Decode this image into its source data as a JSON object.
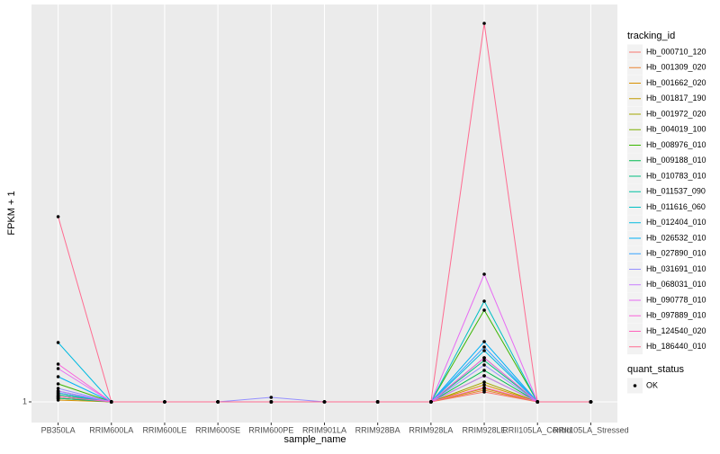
{
  "chart_data": {
    "type": "line",
    "x_label": "sample_name",
    "y_label": "FPKM + 1",
    "categories": [
      "PB350LA",
      "RRIM600LA",
      "RRIM600LE",
      "RRIM600SE",
      "RRIM600PE",
      "RRIM901LA",
      "RRIM928BA",
      "RRIM928LA",
      "RRIM928LE",
      "RRII105LA_Control",
      "RRII105LA_Stressed"
    ],
    "ylim": [
      -0.15,
      23.1
    ],
    "yticks": [
      1
    ],
    "grid": true,
    "legend_title": "tracking_id",
    "point_legend_title": "quant_status",
    "point_legend_label": "OK",
    "point_color": "#000000",
    "series": [
      {
        "name": "Hb_000710_120",
        "color": "#F8766D",
        "values": [
          1.2,
          1,
          1,
          1,
          1,
          1,
          1,
          1,
          1.55,
          1,
          1
        ]
      },
      {
        "name": "Hb_001309_020",
        "color": "#EA8331",
        "values": [
          1.3,
          1,
          1,
          1,
          1,
          1,
          1,
          1,
          1.65,
          1,
          1
        ]
      },
      {
        "name": "Hb_001662_020",
        "color": "#D89000",
        "values": [
          1.1,
          1,
          1,
          1,
          1,
          1,
          1,
          1,
          1.95,
          1,
          1
        ]
      },
      {
        "name": "Hb_001817_190",
        "color": "#C09B00",
        "values": [
          1.4,
          1,
          1,
          1,
          1,
          1,
          1,
          1,
          1.75,
          1,
          1
        ]
      },
      {
        "name": "Hb_001972_020",
        "color": "#A3A500",
        "values": [
          1.2,
          1,
          1,
          1,
          1,
          1,
          1,
          1,
          2.1,
          1,
          1
        ]
      },
      {
        "name": "Hb_004019_100",
        "color": "#7CAE00",
        "values": [
          1.5,
          1,
          1,
          1,
          1,
          1,
          1,
          1,
          2.45,
          1,
          1
        ]
      },
      {
        "name": "Hb_008976_010",
        "color": "#39B600",
        "values": [
          2.0,
          1,
          1,
          1,
          1,
          1,
          1,
          1,
          6.1,
          1,
          1
        ]
      },
      {
        "name": "Hb_009188_010",
        "color": "#00BB4E",
        "values": [
          1.3,
          1,
          1,
          1,
          1,
          1,
          1,
          1,
          2.75,
          1,
          1
        ]
      },
      {
        "name": "Hb_010783_010",
        "color": "#00BF7D",
        "values": [
          1.2,
          1,
          1,
          1,
          1,
          1,
          1,
          1,
          3.3,
          1,
          1
        ]
      },
      {
        "name": "Hb_011537_090",
        "color": "#00C1A3",
        "values": [
          1.4,
          1,
          1,
          1,
          1,
          1,
          1,
          1,
          3.45,
          1,
          1
        ]
      },
      {
        "name": "Hb_011616_060",
        "color": "#00BFC4",
        "values": [
          1.6,
          1,
          1,
          1,
          1,
          1,
          1,
          1,
          6.6,
          1,
          1
        ]
      },
      {
        "name": "Hb_012404_010",
        "color": "#00BAE0",
        "values": [
          4.3,
          1,
          1,
          1,
          1,
          1,
          1,
          1,
          3.85,
          1,
          1
        ]
      },
      {
        "name": "Hb_026532_010",
        "color": "#00B0F6",
        "values": [
          2.4,
          1,
          1,
          1,
          1,
          1,
          1,
          1,
          4.35,
          1,
          1
        ]
      },
      {
        "name": "Hb_027890_010",
        "color": "#35A2FF",
        "values": [
          1.5,
          1,
          1,
          1,
          1,
          1,
          1,
          1,
          4.05,
          1,
          1
        ]
      },
      {
        "name": "Hb_031691_010",
        "color": "#9590FF",
        "values": [
          1.75,
          1,
          1,
          1,
          1.25,
          1,
          1,
          1,
          3.05,
          1,
          1
        ]
      },
      {
        "name": "Hb_068031_010",
        "color": "#C77CFF",
        "values": [
          1.6,
          1,
          1,
          1,
          1,
          1,
          1,
          1,
          2.45,
          1,
          1
        ]
      },
      {
        "name": "Hb_090778_010",
        "color": "#E76BF3",
        "values": [
          2.85,
          1,
          1,
          1,
          1,
          1,
          1,
          1,
          8.1,
          1,
          1
        ]
      },
      {
        "name": "Hb_097889_010",
        "color": "#FA62DB",
        "values": [
          3.1,
          1,
          1,
          1,
          1,
          1,
          1,
          1,
          3.45,
          1,
          1
        ]
      },
      {
        "name": "Hb_124540_020",
        "color": "#FF62BC",
        "values": [
          1.3,
          1,
          1,
          1,
          1,
          1,
          1,
          1,
          1.8,
          1,
          1
        ]
      },
      {
        "name": "Hb_186440_010",
        "color": "#FF6C91",
        "values": [
          11.3,
          1,
          1,
          1,
          1,
          1,
          1,
          1,
          22.05,
          1,
          1
        ]
      }
    ]
  }
}
